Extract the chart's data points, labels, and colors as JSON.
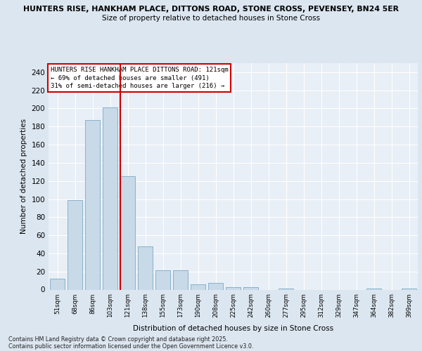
{
  "title_line1": "HUNTERS RISE, HANKHAM PLACE, DITTONS ROAD, STONE CROSS, PEVENSEY, BN24 5ER",
  "title_line2": "Size of property relative to detached houses in Stone Cross",
  "xlabel": "Distribution of detached houses by size in Stone Cross",
  "ylabel": "Number of detached properties",
  "categories": [
    "51sqm",
    "68sqm",
    "86sqm",
    "103sqm",
    "121sqm",
    "138sqm",
    "155sqm",
    "173sqm",
    "190sqm",
    "208sqm",
    "225sqm",
    "242sqm",
    "260sqm",
    "277sqm",
    "295sqm",
    "312sqm",
    "329sqm",
    "347sqm",
    "364sqm",
    "382sqm",
    "399sqm"
  ],
  "values": [
    12,
    99,
    187,
    201,
    125,
    48,
    21,
    21,
    6,
    7,
    3,
    3,
    0,
    1,
    0,
    0,
    0,
    0,
    1,
    0,
    1
  ],
  "bar_color": "#c8d9e8",
  "bar_edge_color": "#7aaac8",
  "vline_color": "#cc0000",
  "annotation_title": "HUNTERS RISE HANKHAM PLACE DITTONS ROAD: 121sqm",
  "annotation_line2": "← 69% of detached houses are smaller (491)",
  "annotation_line3": "31% of semi-detached houses are larger (216) →",
  "annotation_box_color": "#ffffff",
  "annotation_box_edge": "#cc0000",
  "ylim": [
    0,
    250
  ],
  "yticks": [
    0,
    20,
    40,
    60,
    80,
    100,
    120,
    140,
    160,
    180,
    200,
    220,
    240
  ],
  "footer_line1": "Contains HM Land Registry data © Crown copyright and database right 2025.",
  "footer_line2": "Contains public sector information licensed under the Open Government Licence v3.0.",
  "bg_color": "#dce6f0",
  "plot_bg_color": "#e8eff6",
  "grid_color": "#ffffff"
}
